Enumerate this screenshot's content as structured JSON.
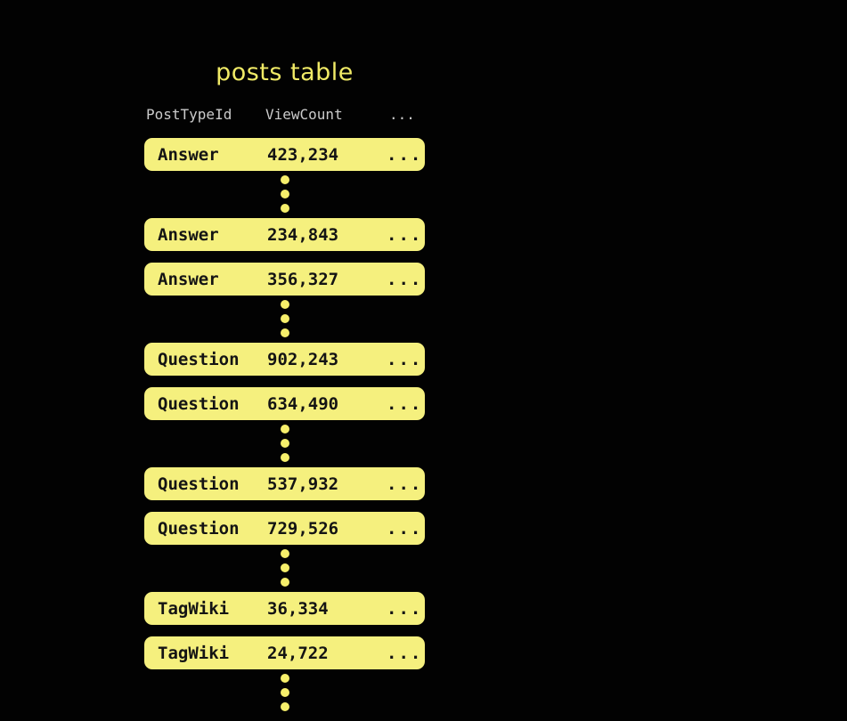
{
  "title": "posts table",
  "colors": {
    "background": "#020202",
    "row_fill": "#F5F07E",
    "row_text": "#141414",
    "dot": "#F6EF6B",
    "title_text": "#F0EA66",
    "header_text": "#CBCBCB"
  },
  "table": {
    "columns": [
      "PostTypeId",
      "ViewCount",
      "..."
    ],
    "items": [
      {
        "type": "row",
        "post_type": "Answer",
        "view_count": "423,234",
        "more": "..."
      },
      {
        "type": "dots"
      },
      {
        "type": "row",
        "post_type": "Answer",
        "view_count": "234,843",
        "more": "..."
      },
      {
        "type": "row",
        "post_type": "Answer",
        "view_count": "356,327",
        "more": "..."
      },
      {
        "type": "dots"
      },
      {
        "type": "row",
        "post_type": "Question",
        "view_count": "902,243",
        "more": "..."
      },
      {
        "type": "row",
        "post_type": "Question",
        "view_count": "634,490",
        "more": "..."
      },
      {
        "type": "dots"
      },
      {
        "type": "row",
        "post_type": "Question",
        "view_count": "537,932",
        "more": "..."
      },
      {
        "type": "row",
        "post_type": "Question",
        "view_count": "729,526",
        "more": "..."
      },
      {
        "type": "dots"
      },
      {
        "type": "row",
        "post_type": "TagWiki",
        "view_count": "36,334",
        "more": "..."
      },
      {
        "type": "row",
        "post_type": "TagWiki",
        "view_count": "24,722",
        "more": "..."
      },
      {
        "type": "dots"
      }
    ]
  }
}
